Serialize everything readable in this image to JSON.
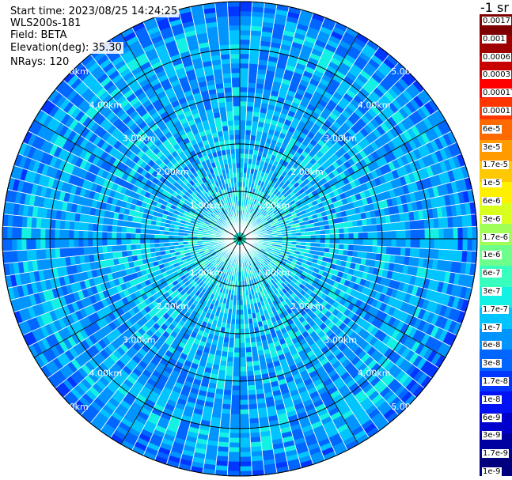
{
  "info": {
    "start_time": "Start time: 2023/08/25 14:24:25",
    "instrument": "WLS200s-181",
    "field": "Field: BETA",
    "elevation": "Elevation(deg): 35.30",
    "nrays": "NRays: 120"
  },
  "colorbar": {
    "unit_label": "-1 sr",
    "ticks": [
      "0.0017",
      "0.001",
      "0.0006",
      "0.0003",
      "0.00017",
      "0.0001",
      "6e-5",
      "3e-5",
      "1.7e-5",
      "1e-5",
      "6e-6",
      "3e-6",
      "1.7e-6",
      "1e-6",
      "6e-7",
      "3e-7",
      "1.7e-7",
      "1e-7",
      "6e-8",
      "3e-8",
      "1.7e-8",
      "1e-8",
      "6e-9",
      "3e-9",
      "1.7e-9",
      "1e-9"
    ],
    "colors": [
      "#7f0000",
      "#a00000",
      "#c80000",
      "#ff0000",
      "#ff3500",
      "#ff6a00",
      "#ff9a00",
      "#ffc800",
      "#fff000",
      "#d9ff1f",
      "#a0ff57",
      "#6dff8a",
      "#39ffbe",
      "#13f0e4",
      "#00c4ff",
      "#0094ff",
      "#0066ff",
      "#0036ff",
      "#0012f5",
      "#0000cd",
      "#0000a0",
      "#00007f"
    ]
  },
  "range_labels": [
    "1.00km",
    "2.00km",
    "3.00km",
    "4.00km",
    "5.00km"
  ],
  "chart_data": {
    "type": "heatmap",
    "title": "",
    "field": "BETA",
    "unit": "-1 sr",
    "rays": 120,
    "elevation_deg": 35.3,
    "range_rings_km": [
      1.0,
      2.0,
      3.0,
      4.0,
      5.0
    ],
    "azimuth_lines_deg": [
      0,
      30,
      60,
      90,
      120,
      150,
      180,
      210,
      240,
      270,
      300,
      330
    ],
    "color_scale": "log",
    "value_range": [
      1e-09,
      0.0017
    ],
    "approx_values_by_range_km": [
      {
        "range_km": 0.2,
        "beta": 3e-07
      },
      {
        "range_km": 0.6,
        "beta": 1.7e-07
      },
      {
        "range_km": 1.0,
        "beta": 1.7e-07
      },
      {
        "range_km": 1.5,
        "beta": 1e-07
      },
      {
        "range_km": 2.5,
        "beta": 1e-07
      },
      {
        "range_km": 3.5,
        "beta": 6e-08
      },
      {
        "range_km": 4.3,
        "beta": 1e-07
      },
      {
        "range_km": 5.0,
        "beta": 3e-08
      }
    ]
  }
}
